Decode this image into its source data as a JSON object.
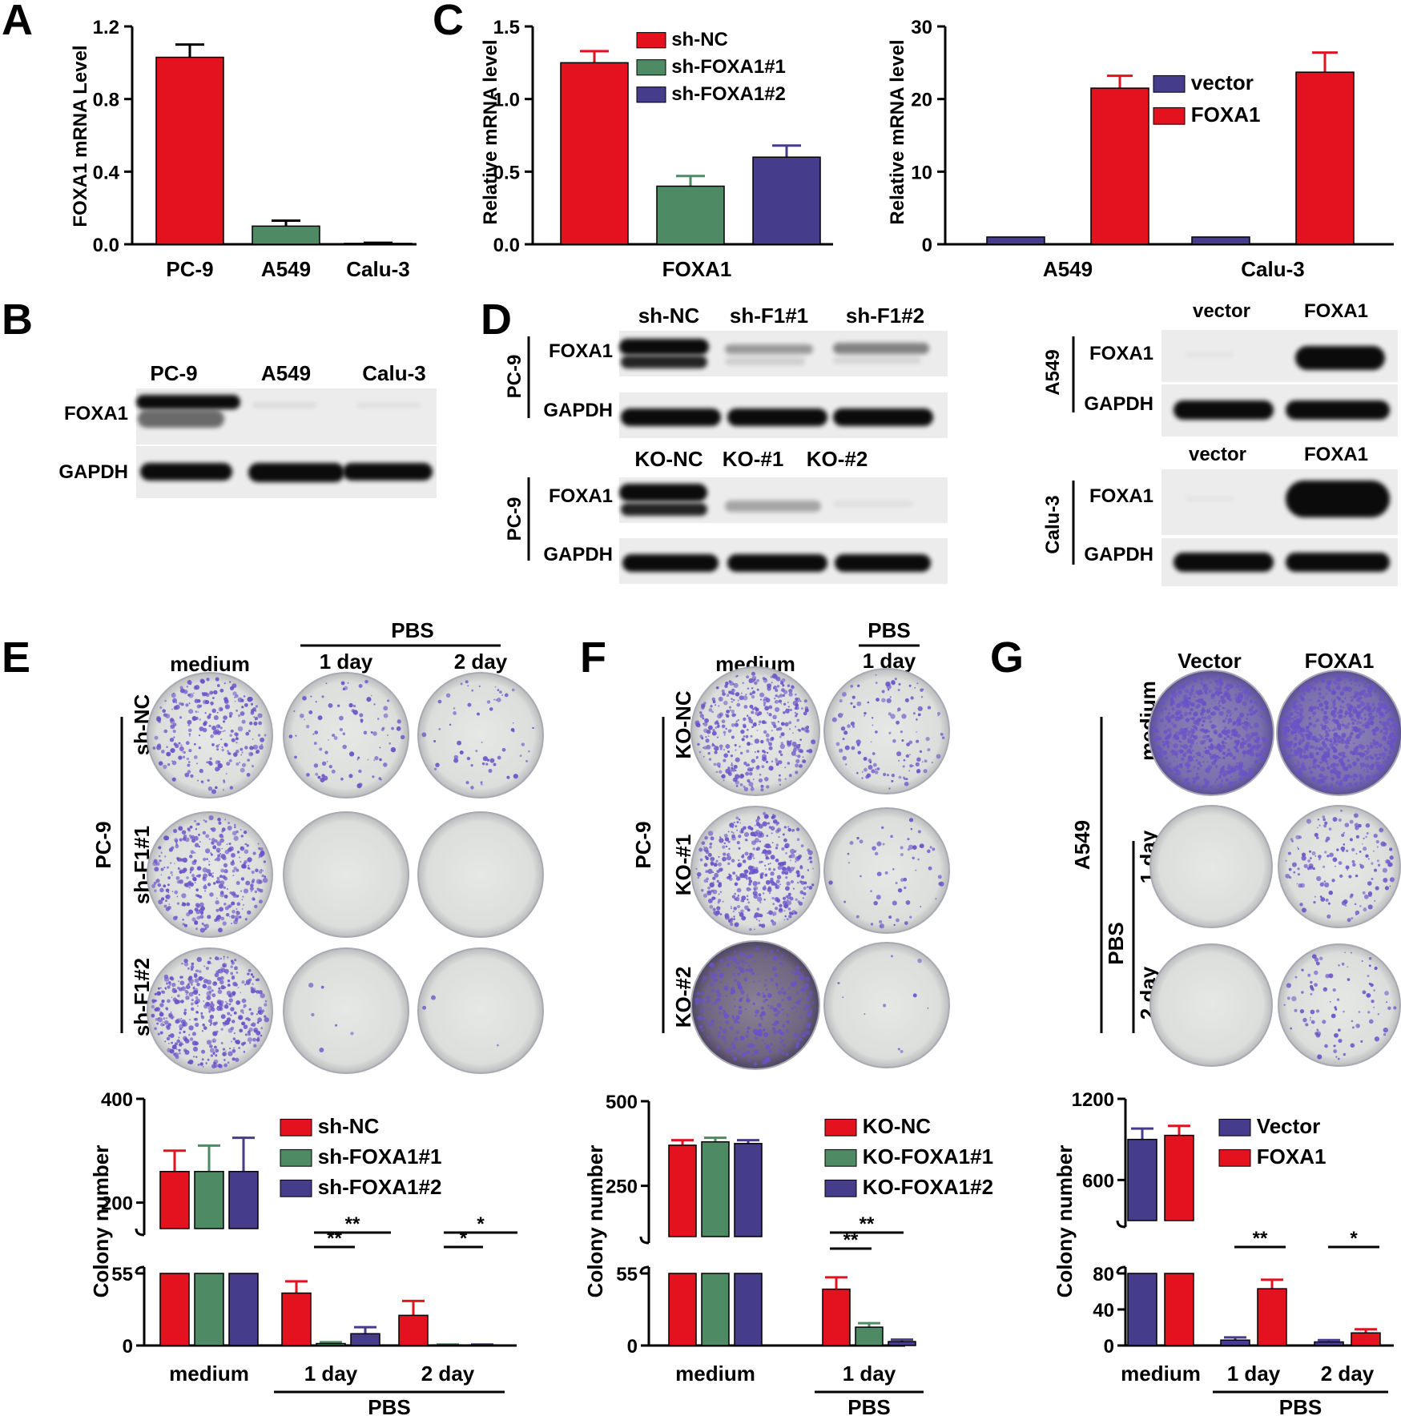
{
  "panels": {
    "A": "A",
    "B": "B",
    "C": "C",
    "D": "D",
    "E": "E",
    "F": "F",
    "G": "G"
  },
  "colors": {
    "red": "#e3121e",
    "green": "#4e8a64",
    "purple": "#463c8c"
  },
  "chart_data": [
    {
      "id": "A",
      "type": "bar",
      "ylabel": "FOXA1 mRNA Level",
      "ylim": [
        0,
        1.2
      ],
      "yticks": [
        "0.0",
        "0.4",
        "0.8",
        "1.2"
      ],
      "categories": [
        "PC-9",
        "A549",
        "Calu-3"
      ],
      "values": [
        1.03,
        0.1,
        0.005
      ],
      "errors": [
        0.07,
        0.03,
        0.003
      ],
      "bar_colors": [
        "red",
        "green",
        "green"
      ]
    },
    {
      "id": "C-left",
      "type": "bar",
      "ylabel": "Relative mRNA level",
      "ylim": [
        0,
        1.5
      ],
      "yticks": [
        "0.0",
        "0.5",
        "1.0",
        "1.5"
      ],
      "categories": [
        "FOXA1"
      ],
      "series": [
        {
          "name": "sh-NC",
          "color": "red",
          "values": [
            1.25
          ],
          "errors": [
            0.08
          ]
        },
        {
          "name": "sh-FOXA1#1",
          "color": "green",
          "values": [
            0.4
          ],
          "errors": [
            0.07
          ]
        },
        {
          "name": "sh-FOXA1#2",
          "color": "purple",
          "values": [
            0.6
          ],
          "errors": [
            0.08
          ]
        }
      ]
    },
    {
      "id": "C-right",
      "type": "bar",
      "ylabel": "Relative mRNA level",
      "ylim": [
        0,
        30
      ],
      "yticks": [
        "0",
        "10",
        "20",
        "30"
      ],
      "categories": [
        "A549",
        "Calu-3"
      ],
      "series": [
        {
          "name": "vector",
          "color": "purple",
          "values": [
            1,
            1
          ],
          "errors": [
            0,
            0
          ]
        },
        {
          "name": "FOXA1",
          "color": "red",
          "values": [
            21.5,
            23.7
          ],
          "errors": [
            1.7,
            2.7
          ]
        }
      ]
    },
    {
      "id": "E-chart",
      "type": "bar",
      "ylabel": "Colony number",
      "yticks_top": [
        "200",
        "400"
      ],
      "yticks_bottom": [
        "0",
        "55"
      ],
      "categories": [
        "medium",
        "1 day",
        "2 day"
      ],
      "group_label": "PBS",
      "series": [
        {
          "name": "sh-NC",
          "color": "red",
          "values": [
            260,
            40,
            23
          ],
          "errors": [
            40,
            9,
            11
          ]
        },
        {
          "name": "sh-FOXA1#1",
          "color": "green",
          "values": [
            260,
            1.5,
            0.5
          ],
          "errors": [
            50,
            1,
            0.3
          ]
        },
        {
          "name": "sh-FOXA1#2",
          "color": "purple",
          "values": [
            260,
            9,
            0.5
          ],
          "errors": [
            65,
            5,
            0.3
          ]
        }
      ],
      "significance": [
        "**",
        "**",
        "*",
        "*"
      ]
    },
    {
      "id": "F-chart",
      "type": "bar",
      "ylabel": "Colony number",
      "yticks_top": [
        "250",
        "500"
      ],
      "yticks_bottom": [
        "0",
        "55"
      ],
      "categories": [
        "medium",
        "1 day"
      ],
      "group_label": "PBS",
      "series": [
        {
          "name": "KO-NC",
          "color": "red",
          "values": [
            370,
            43
          ],
          "errors": [
            15,
            9
          ]
        },
        {
          "name": "KO-FOXA1#1",
          "color": "green",
          "values": [
            380,
            14
          ],
          "errors": [
            12,
            3
          ]
        },
        {
          "name": "KO-FOXA1#2",
          "color": "purple",
          "values": [
            375,
            3
          ],
          "errors": [
            10,
            1.5
          ]
        }
      ],
      "significance": [
        "**",
        "**"
      ]
    },
    {
      "id": "G-chart",
      "type": "bar",
      "ylabel": "Colony number",
      "yticks_top": [
        "600",
        "1200"
      ],
      "yticks_bottom": [
        "0",
        "40",
        "80"
      ],
      "categories": [
        "medium",
        "1 day",
        "2 day"
      ],
      "group_label": "PBS",
      "series": [
        {
          "name": "Vector",
          "color": "purple",
          "values": [
            900,
            6,
            4
          ],
          "errors": [
            80,
            3,
            2
          ]
        },
        {
          "name": "FOXA1",
          "color": "red",
          "values": [
            930,
            63,
            14
          ],
          "errors": [
            70,
            10,
            4
          ]
        }
      ],
      "significance": [
        "**",
        "*"
      ]
    }
  ],
  "blots": {
    "B": {
      "lanes": [
        "PC-9",
        "A549",
        "Calu-3"
      ],
      "rows": [
        "FOXA1",
        "GAPDH"
      ]
    },
    "D_sh": {
      "lanes": [
        "sh-NC",
        "sh-F1#1",
        "sh-F1#2"
      ],
      "rows": [
        "FOXA1",
        "GAPDH"
      ],
      "side": "PC-9"
    },
    "D_ko": {
      "lanes": [
        "KO-NC",
        "KO-#1",
        "KO-#2"
      ],
      "rows": [
        "FOXA1",
        "GAPDH"
      ],
      "side": "PC-9"
    },
    "D_a549": {
      "lanes": [
        "vector",
        "FOXA1"
      ],
      "rows": [
        "FOXA1",
        "GAPDH"
      ],
      "side": "A549"
    },
    "D_calu": {
      "lanes": [
        "vector",
        "FOXA1"
      ],
      "rows": [
        "FOXA1",
        "GAPDH"
      ],
      "side": "Calu-3"
    }
  },
  "plates": {
    "E": {
      "cols": [
        "medium",
        "1 day",
        "2 day"
      ],
      "group": "PBS",
      "rows": [
        "sh-NC",
        "sh-F1#1",
        "sh-F1#2"
      ],
      "side": "PC-9"
    },
    "F": {
      "cols": [
        "medium",
        "1 day"
      ],
      "group": "PBS",
      "rows": [
        "KO-NC",
        "KO-#1",
        "KO-#2"
      ],
      "side": "PC-9"
    },
    "G": {
      "cols": [
        "Vector",
        "FOXA1"
      ],
      "rows": [
        "medium",
        "1 day",
        "2 day"
      ],
      "group": "PBS",
      "side": "A549"
    }
  }
}
